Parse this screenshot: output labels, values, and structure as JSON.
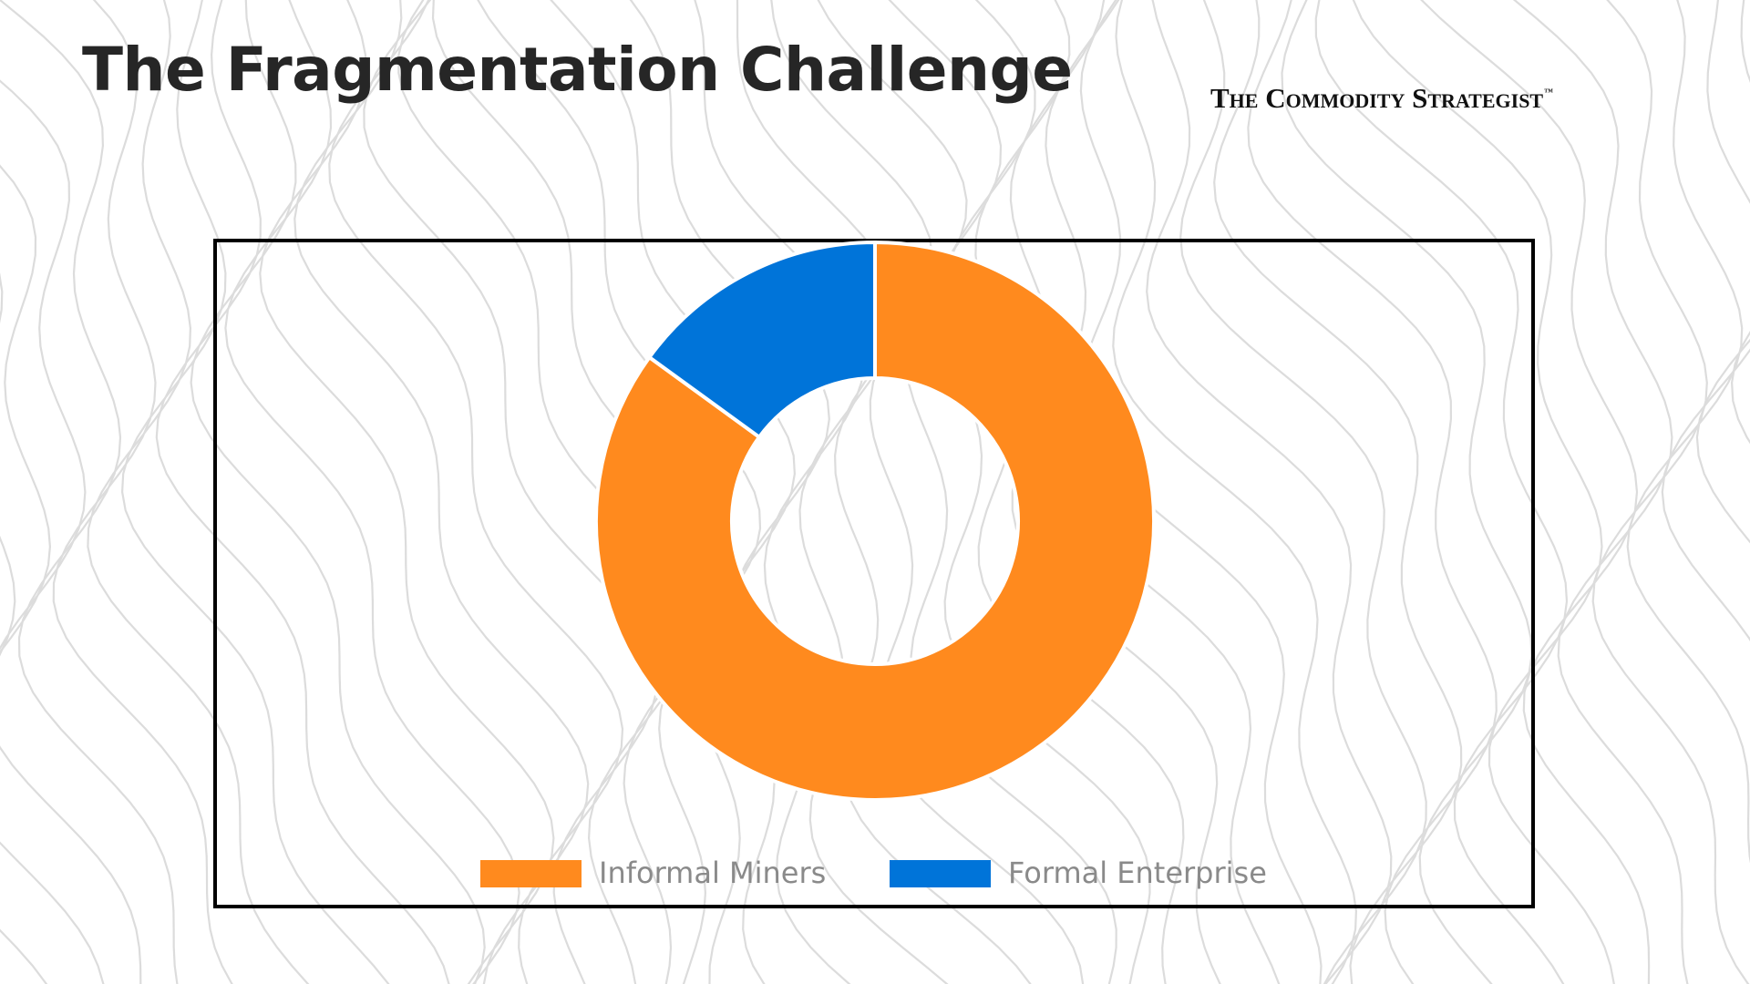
{
  "slide": {
    "title": "The Fragmentation Challenge",
    "brand": "The Commodity Strategist",
    "brand_mark": "™"
  },
  "chart_data": {
    "type": "pie",
    "style": "donut",
    "categories": [
      "Informal Miners",
      "Formal Enterprise"
    ],
    "values": [
      85,
      15
    ],
    "unit": "%",
    "colors": [
      "#FF8A1E",
      "#0074D9"
    ],
    "legend": "bottom"
  }
}
